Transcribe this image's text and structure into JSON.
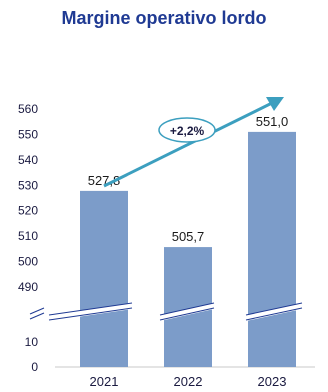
{
  "colors": {
    "title": "#1f3a93",
    "bar": "#7c9cc9",
    "arrow": "#3c9fbf",
    "axis_text": "#1a1a40",
    "value_text": "#1a1a1a",
    "break_line": "#1f3a93"
  },
  "chart_data": {
    "type": "bar",
    "title": "Margine operativo lordo",
    "categories": [
      "2021",
      "2022",
      "2023"
    ],
    "values": [
      527.8,
      505.7,
      551.0
    ],
    "value_labels": [
      "527,8",
      "505,7",
      "551,0"
    ],
    "y_ticks_upper": [
      490,
      500,
      510,
      520,
      530,
      540,
      550,
      560
    ],
    "y_ticks_lower": [
      0,
      10
    ],
    "y_tick_labels_upper": [
      "490",
      "500",
      "510",
      "520",
      "530",
      "540",
      "550",
      "560"
    ],
    "y_tick_labels_lower": [
      "0",
      "10"
    ],
    "ylim": [
      0,
      560
    ],
    "axis_break": true,
    "grid": false,
    "annotation": {
      "text": "+2,2%",
      "type": "trend-arrow"
    },
    "xlabel": "",
    "ylabel": ""
  }
}
